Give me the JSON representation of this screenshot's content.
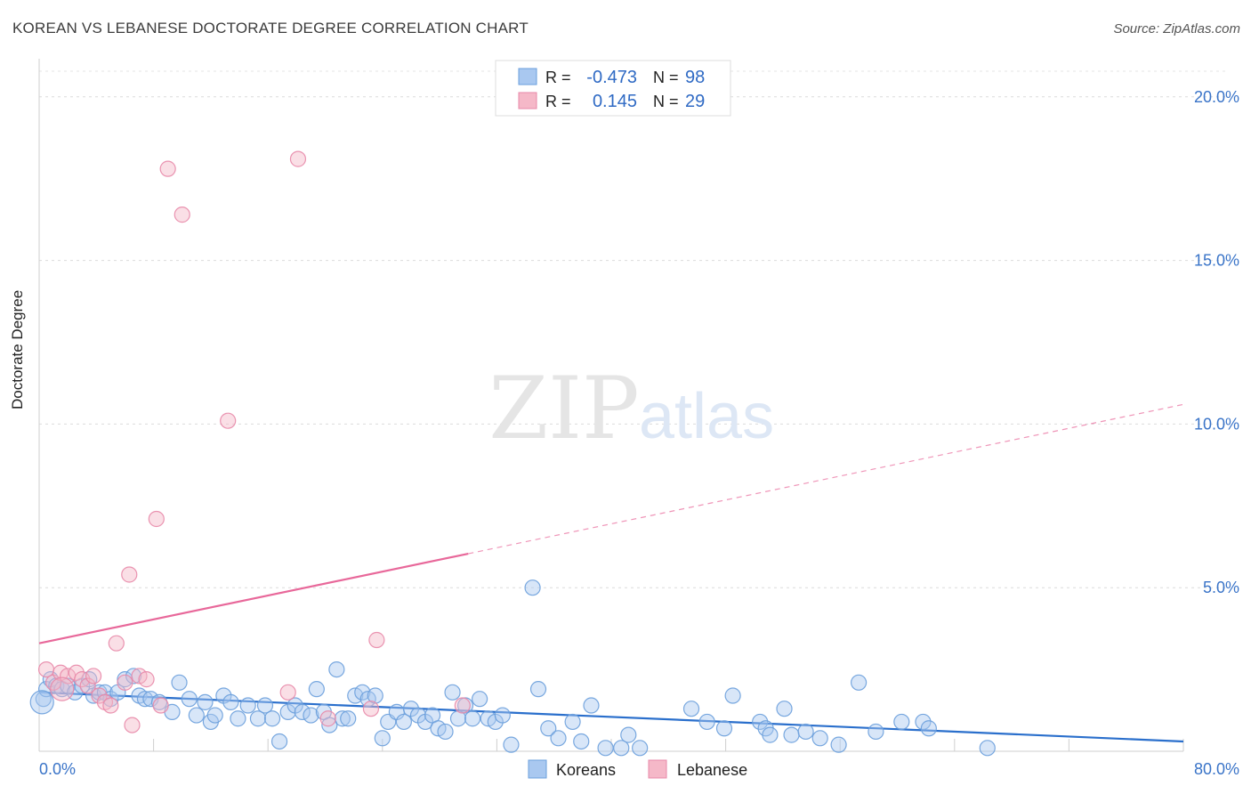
{
  "header": {
    "title": "KOREAN VS LEBANESE DOCTORATE DEGREE CORRELATION CHART",
    "source": "Source: ZipAtlas.com"
  },
  "watermark": {
    "part1": "ZIP",
    "part2": "atlas"
  },
  "chart_data": {
    "type": "scatter",
    "title": "KOREAN VS LEBANESE DOCTORATE DEGREE CORRELATION CHART",
    "xlabel": "",
    "ylabel": "Doctorate Degree",
    "xlim": [
      0,
      80
    ],
    "ylim": [
      0,
      21
    ],
    "x_tick_labels": [
      "0.0%",
      "80.0%"
    ],
    "y_ticks": [
      5,
      10,
      15,
      20
    ],
    "y_tick_labels": [
      "5.0%",
      "10.0%",
      "15.0%",
      "20.0%"
    ],
    "grid": true,
    "legend_position": "bottom-center",
    "stats": [
      {
        "r_label": "R =",
        "r_value": "-0.473",
        "n_label": "N =",
        "n_value": "98",
        "color": "#a9c8f0"
      },
      {
        "r_label": "R =",
        "r_value": "0.145",
        "n_label": "N =",
        "n_value": "29",
        "color": "#f5b8c8"
      }
    ],
    "series": [
      {
        "name": "Koreans",
        "marker_fill": "#a9c8f0",
        "marker_stroke": "#6a9fdc",
        "line_color": "#2a6fcc",
        "trend": {
          "x1": 0,
          "y1": 1.8,
          "x2": 80,
          "y2": 0.3,
          "solid_until": 80
        },
        "points": [
          [
            0.3,
            1.6
          ],
          [
            0.5,
            1.9
          ],
          [
            0.8,
            2.2
          ],
          [
            1.2,
            2.0
          ],
          [
            1.6,
            1.9
          ],
          [
            2.0,
            2.0
          ],
          [
            2.5,
            1.8
          ],
          [
            3.0,
            2.0
          ],
          [
            3.5,
            2.2
          ],
          [
            3.8,
            1.7
          ],
          [
            4.2,
            1.8
          ],
          [
            4.6,
            1.8
          ],
          [
            5.0,
            1.6
          ],
          [
            5.5,
            1.8
          ],
          [
            6.0,
            2.2
          ],
          [
            6.6,
            2.3
          ],
          [
            7.0,
            1.7
          ],
          [
            7.4,
            1.6
          ],
          [
            7.8,
            1.6
          ],
          [
            8.4,
            1.5
          ],
          [
            9.3,
            1.2
          ],
          [
            9.8,
            2.1
          ],
          [
            10.5,
            1.6
          ],
          [
            11.0,
            1.1
          ],
          [
            11.6,
            1.5
          ],
          [
            12.0,
            0.9
          ],
          [
            12.3,
            1.1
          ],
          [
            12.9,
            1.7
          ],
          [
            13.4,
            1.5
          ],
          [
            13.9,
            1.0
          ],
          [
            14.6,
            1.4
          ],
          [
            15.3,
            1.0
          ],
          [
            15.8,
            1.4
          ],
          [
            16.3,
            1.0
          ],
          [
            16.8,
            0.3
          ],
          [
            17.4,
            1.2
          ],
          [
            17.9,
            1.4
          ],
          [
            18.4,
            1.2
          ],
          [
            19.0,
            1.1
          ],
          [
            19.4,
            1.9
          ],
          [
            19.9,
            1.2
          ],
          [
            20.3,
            0.8
          ],
          [
            20.8,
            2.5
          ],
          [
            21.2,
            1.0
          ],
          [
            21.6,
            1.0
          ],
          [
            22.1,
            1.7
          ],
          [
            22.6,
            1.8
          ],
          [
            23.0,
            1.6
          ],
          [
            23.5,
            1.7
          ],
          [
            24.0,
            0.4
          ],
          [
            24.4,
            0.9
          ],
          [
            25.0,
            1.2
          ],
          [
            25.5,
            0.9
          ],
          [
            26.0,
            1.3
          ],
          [
            26.5,
            1.1
          ],
          [
            27.0,
            0.9
          ],
          [
            27.5,
            1.1
          ],
          [
            27.9,
            0.7
          ],
          [
            28.4,
            0.6
          ],
          [
            28.9,
            1.8
          ],
          [
            29.3,
            1.0
          ],
          [
            29.8,
            1.4
          ],
          [
            30.3,
            1.0
          ],
          [
            30.8,
            1.6
          ],
          [
            31.4,
            1.0
          ],
          [
            31.9,
            0.9
          ],
          [
            32.4,
            1.1
          ],
          [
            33.0,
            0.2
          ],
          [
            34.5,
            5.0
          ],
          [
            34.9,
            1.9
          ],
          [
            35.6,
            0.7
          ],
          [
            36.3,
            0.4
          ],
          [
            37.3,
            0.9
          ],
          [
            37.9,
            0.3
          ],
          [
            38.6,
            1.4
          ],
          [
            39.6,
            0.1
          ],
          [
            40.7,
            0.1
          ],
          [
            41.2,
            0.5
          ],
          [
            42.0,
            0.1
          ],
          [
            45.6,
            1.3
          ],
          [
            46.7,
            0.9
          ],
          [
            47.9,
            0.7
          ],
          [
            48.5,
            1.7
          ],
          [
            50.4,
            0.9
          ],
          [
            50.8,
            0.7
          ],
          [
            51.1,
            0.5
          ],
          [
            52.1,
            1.3
          ],
          [
            52.6,
            0.5
          ],
          [
            53.6,
            0.6
          ],
          [
            54.6,
            0.4
          ],
          [
            55.9,
            0.2
          ],
          [
            57.3,
            2.1
          ],
          [
            58.5,
            0.6
          ],
          [
            60.3,
            0.9
          ],
          [
            61.8,
            0.9
          ],
          [
            62.2,
            0.7
          ],
          [
            66.3,
            0.1
          ],
          [
            0.2,
            1.5
          ]
        ]
      },
      {
        "name": "Lebanese",
        "marker_fill": "#f5b8c8",
        "marker_stroke": "#e888a8",
        "line_color": "#e8689a",
        "trend": {
          "x1": 0,
          "y1": 3.3,
          "x2": 80,
          "y2": 10.6,
          "solid_until": 30
        },
        "points": [
          [
            0.5,
            2.5
          ],
          [
            1.0,
            2.1
          ],
          [
            1.5,
            2.4
          ],
          [
            2.0,
            2.3
          ],
          [
            2.6,
            2.4
          ],
          [
            3.0,
            2.2
          ],
          [
            3.4,
            2.0
          ],
          [
            3.8,
            2.3
          ],
          [
            4.2,
            1.7
          ],
          [
            4.6,
            1.5
          ],
          [
            5.0,
            1.4
          ],
          [
            5.4,
            3.3
          ],
          [
            6.0,
            2.1
          ],
          [
            6.5,
            0.8
          ],
          [
            7.0,
            2.3
          ],
          [
            7.5,
            2.2
          ],
          [
            6.3,
            5.4
          ],
          [
            8.2,
            7.1
          ],
          [
            8.5,
            1.4
          ],
          [
            9.0,
            17.8
          ],
          [
            10.0,
            16.4
          ],
          [
            13.2,
            10.1
          ],
          [
            17.4,
            1.8
          ],
          [
            18.1,
            18.1
          ],
          [
            20.2,
            1.0
          ],
          [
            23.2,
            1.3
          ],
          [
            23.6,
            3.4
          ],
          [
            29.6,
            1.4
          ],
          [
            1.6,
            1.9
          ]
        ]
      }
    ]
  }
}
